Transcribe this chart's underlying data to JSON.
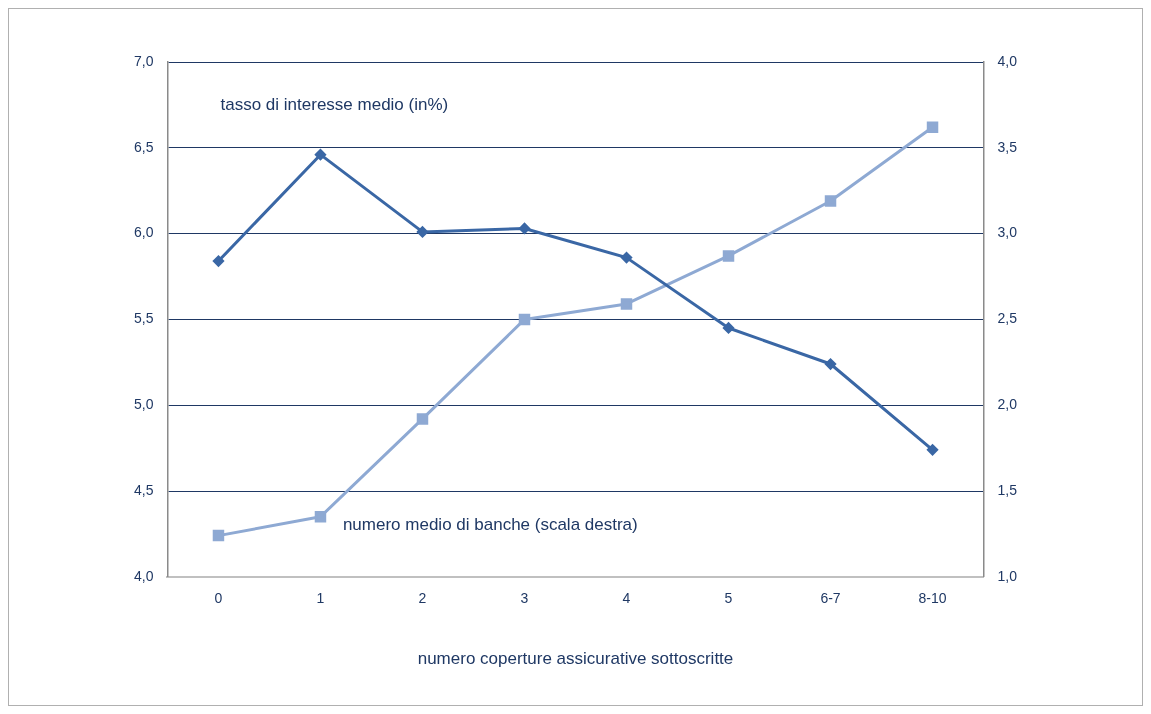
{
  "chart_data": {
    "type": "line",
    "xlabel": "numero coperture assicurative sottoscritte",
    "categories": [
      "0",
      "1",
      "2",
      "3",
      "4",
      "5",
      "6-7",
      "8-10"
    ],
    "series": [
      {
        "name": "tasso di interesse medio (in%)",
        "color": "#3a67a5",
        "marker": "diamond",
        "values": [
          5.84,
          6.46,
          6.01,
          6.03,
          5.86,
          5.45,
          5.24,
          4.74
        ]
      },
      {
        "name": "numero medio di banche (scala destra)",
        "color": "#8ea9d3",
        "marker": "square",
        "axis": "y2",
        "values": [
          1.24,
          1.35,
          1.92,
          2.5,
          2.59,
          2.87,
          3.19,
          3.62
        ]
      }
    ],
    "ylim": [
      4,
      7
    ],
    "yticks": [
      {
        "value": 4,
        "label": "4,0"
      },
      {
        "value": 4.5,
        "label": "4,5"
      },
      {
        "value": 5,
        "label": "5,0"
      },
      {
        "value": 5.5,
        "label": "5,5"
      },
      {
        "value": 6,
        "label": "6,0"
      },
      {
        "value": 6.5,
        "label": "6,5"
      },
      {
        "value": 7,
        "label": "7,0"
      }
    ],
    "y2lim": [
      1,
      4
    ],
    "y2ticks": [
      {
        "value": 1,
        "label": "1,0"
      },
      {
        "value": 1.5,
        "label": "1,5"
      },
      {
        "value": 2,
        "label": "2,0"
      },
      {
        "value": 2.5,
        "label": "2,5"
      },
      {
        "value": 3,
        "label": "3,0"
      },
      {
        "value": 3.5,
        "label": "3,5"
      },
      {
        "value": 4,
        "label": "4,0"
      }
    ],
    "grid": "y",
    "legend": false
  }
}
